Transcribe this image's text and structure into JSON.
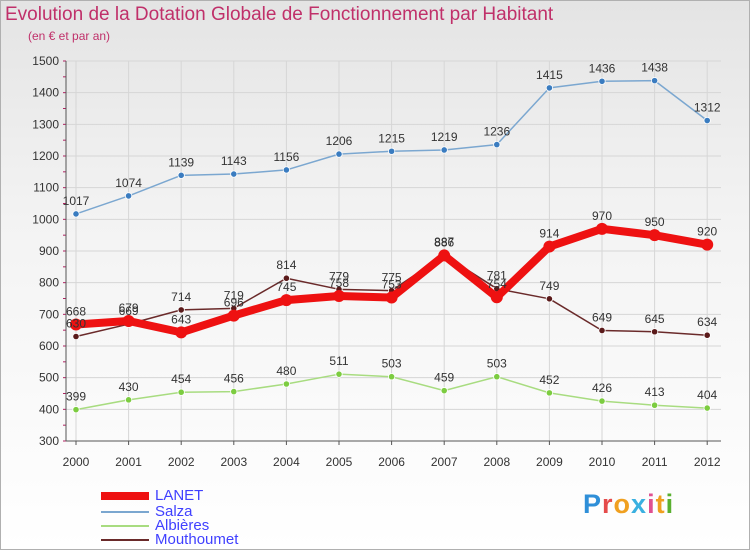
{
  "header": {
    "title": "Evolution de la Dotation Globale de Fonctionnement par Habitant",
    "subtitle": "(en € et par an)"
  },
  "logo": {
    "text": "Proxiti",
    "letters": [
      "P",
      "r",
      "o",
      "x",
      "i",
      "t",
      "i"
    ]
  },
  "chart_data": {
    "type": "line",
    "title": "Evolution de la Dotation Globale de Fonctionnement par Habitant",
    "ylabel": "(en € et par an)",
    "xlabel": "",
    "ylim": [
      300,
      1500
    ],
    "yticks": [
      300,
      400,
      500,
      600,
      700,
      800,
      900,
      1000,
      1100,
      1200,
      1300,
      1400,
      1500
    ],
    "grid": true,
    "legend_position": "bottom-left",
    "categories": [
      "2000",
      "2001",
      "2002",
      "2003",
      "2004",
      "2005",
      "2006",
      "2007",
      "2008",
      "2009",
      "2010",
      "2011",
      "2012"
    ],
    "series": [
      {
        "name": "Salza",
        "color": "#7ba7d0",
        "marker": "#3a7cc0",
        "values": [
          1017,
          1074,
          1139,
          1143,
          1156,
          1206,
          1215,
          1219,
          1236,
          1415,
          1436,
          1438,
          1312
        ]
      },
      {
        "name": "Albières",
        "color": "#a8dc80",
        "marker": "#7ccc40",
        "values": [
          399,
          430,
          454,
          456,
          480,
          511,
          503,
          459,
          503,
          452,
          426,
          413,
          404
        ]
      },
      {
        "name": "Mouthoumet",
        "color": "#6a2a2a",
        "marker": "#5a1a1a",
        "values": [
          630,
          669,
          714,
          719,
          814,
          779,
          775,
          887,
          781,
          749,
          649,
          645,
          634
        ]
      },
      {
        "name": "LANET",
        "color": "#ee1111",
        "marker": "#ee1111",
        "values": [
          668,
          679,
          643,
          696,
          745,
          758,
          753,
          886,
          754,
          914,
          970,
          950,
          920
        ]
      }
    ]
  }
}
